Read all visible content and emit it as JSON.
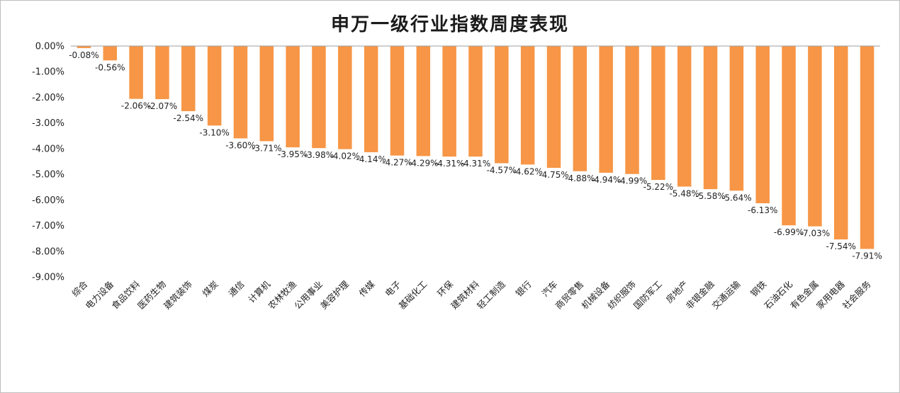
{
  "chart_data": {
    "type": "bar",
    "title": "申万一级行业指数周度表现",
    "categories": [
      "综合",
      "电力设备",
      "食品饮料",
      "医药生物",
      "建筑装饰",
      "煤炭",
      "通信",
      "计算机",
      "农林牧渔",
      "公用事业",
      "美容护理",
      "传媒",
      "电子",
      "基础化工",
      "环保",
      "建筑材料",
      "轻工制造",
      "银行",
      "汽车",
      "商贸零售",
      "机械设备",
      "纺织服饰",
      "国防军工",
      "房地产",
      "非银金融",
      "交通运输",
      "钢铁",
      "石油石化",
      "有色金属",
      "家用电器",
      "社会服务"
    ],
    "values": [
      -0.08,
      -0.56,
      -2.06,
      -2.07,
      -2.54,
      -3.1,
      -3.6,
      -3.71,
      -3.95,
      -3.98,
      -4.02,
      -4.14,
      -4.27,
      -4.29,
      -4.31,
      -4.31,
      -4.57,
      -4.62,
      -4.75,
      -4.88,
      -4.94,
      -4.99,
      -5.22,
      -5.48,
      -5.58,
      -5.64,
      -6.13,
      -6.99,
      -7.03,
      -7.54,
      -7.91
    ],
    "value_format": "percent_2dp",
    "ylim": [
      -9,
      0
    ],
    "yticks": [
      0,
      -1,
      -2,
      -3,
      -4,
      -5,
      -6,
      -7,
      -8,
      -9
    ],
    "xlabel": "",
    "ylabel": "",
    "grid": false,
    "legend": "none",
    "bar_color": "#f79646"
  }
}
